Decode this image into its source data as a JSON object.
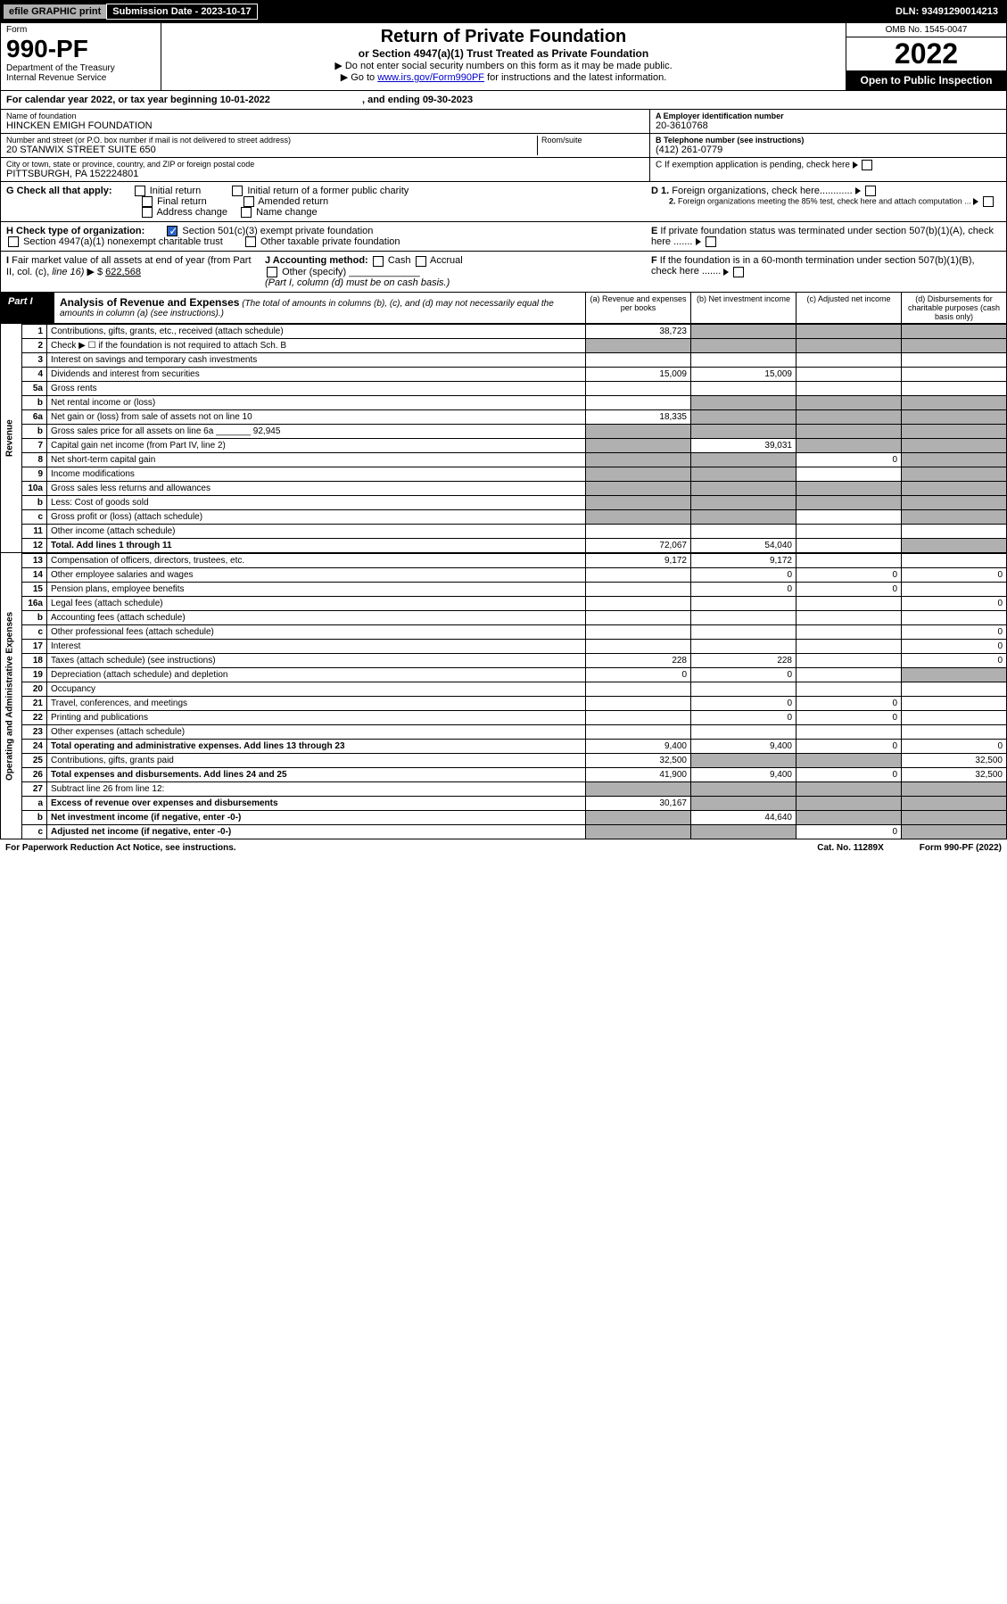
{
  "top": {
    "efile": "efile GRAPHIC print",
    "sub": "Submission Date - 2023-10-17",
    "dln": "DLN: 93491290014213"
  },
  "hdr": {
    "form": "Form",
    "num": "990-PF",
    "dept": "Department of the Treasury",
    "irs": "Internal Revenue Service",
    "title": "Return of Private Foundation",
    "sub": "or Section 4947(a)(1) Trust Treated as Private Foundation",
    "note1": "▶ Do not enter social security numbers on this form as it may be made public.",
    "note2a": "▶ Go to ",
    "note2b": "www.irs.gov/Form990PF",
    "note2c": " for instructions and the latest information.",
    "omb": "OMB No. 1545-0047",
    "year": "2022",
    "open": "Open to Public Inspection"
  },
  "cal": {
    "a": "For calendar year 2022, or tax year beginning 10-01-2022",
    "b": ", and ending 09-30-2023"
  },
  "name": {
    "lbl": "Name of foundation",
    "val": "HINCKEN EMIGH FOUNDATION"
  },
  "addr": {
    "lbl": "Number and street (or P.O. box number if mail is not delivered to street address)",
    "val": "20 STANWIX STREET SUITE 650",
    "rm": "Room/suite"
  },
  "city": {
    "lbl": "City or town, state or province, country, and ZIP or foreign postal code",
    "val": "PITTSBURGH, PA  152224801"
  },
  "emp": {
    "lbl": "A Employer identification number",
    "val": "20-3610768"
  },
  "tel": {
    "lbl": "B Telephone number (see instructions)",
    "val": "(412) 261-0779"
  },
  "cex": "C If exemption application is pending, check here",
  "d1": "D 1. Foreign organizations, check here............",
  "d2": "2. Foreign organizations meeting the 85% test, check here and attach computation ...",
  "eex": "E If private foundation status was terminated under section 507(b)(1)(A), check here .......",
  "fex": "F If the foundation is in a 60-month termination under section 507(b)(1)(B), check here .......",
  "g": {
    "lbl": "G Check all that apply:",
    "o1": "Initial return",
    "o2": "Final return",
    "o3": "Address change",
    "o4": "Initial return of a former public charity",
    "o5": "Amended return",
    "o6": "Name change"
  },
  "h": {
    "lbl": "H Check type of organization:",
    "o1": "Section 501(c)(3) exempt private foundation",
    "o2": "Section 4947(a)(1) nonexempt charitable trust",
    "o3": "Other taxable private foundation"
  },
  "i": {
    "lbl": "I Fair market value of all assets at end of year (from Part II, col. (c), line 16) ▶ $",
    "val": "622,568"
  },
  "j": {
    "lbl": "J Accounting method:",
    "o1": "Cash",
    "o2": "Accrual",
    "o3": "Other (specify)",
    "note": "(Part I, column (d) must be on cash basis.)"
  },
  "part1": {
    "lbl": "Part I",
    "title": "Analysis of Revenue and Expenses",
    "sub": " (The total of amounts in columns (b), (c), and (d) may not necessarily equal the amounts in column (a) (see instructions).)",
    "ca": "(a)  Revenue and expenses per books",
    "cb": "(b)  Net investment income",
    "cc": "(c)  Adjusted net income",
    "cd": "(d)  Disbursements for charitable purposes (cash basis only)"
  },
  "side": {
    "rev": "Revenue",
    "exp": "Operating and Administrative Expenses"
  },
  "rows": [
    {
      "n": "1",
      "d": "Contributions, gifts, grants, etc., received (attach schedule)",
      "a": "38,723",
      "bsh": true,
      "csh": true,
      "dsh": true
    },
    {
      "n": "2",
      "d": "Check ▶ ☐ if the foundation is not required to attach Sch. B",
      "ash": true,
      "bsh": true,
      "csh": true,
      "dsh": true,
      "allsh": true
    },
    {
      "n": "3",
      "d": "Interest on savings and temporary cash investments"
    },
    {
      "n": "4",
      "d": "Dividends and interest from securities",
      "a": "15,009",
      "b": "15,009"
    },
    {
      "n": "5a",
      "d": "Gross rents"
    },
    {
      "n": "b",
      "d": "Net rental income or (loss)",
      "bsh": true,
      "csh": true,
      "dsh": true
    },
    {
      "n": "6a",
      "d": "Net gain or (loss) from sale of assets not on line 10",
      "a": "18,335",
      "bsh": true,
      "csh": true,
      "dsh": true
    },
    {
      "n": "b",
      "d": "Gross sales price for all assets on line 6a _______ 92,945",
      "ash": true,
      "bsh": true,
      "csh": true,
      "dsh": true,
      "allsh": true
    },
    {
      "n": "7",
      "d": "Capital gain net income (from Part IV, line 2)",
      "ash": true,
      "b": "39,031",
      "csh": true,
      "dsh": true
    },
    {
      "n": "8",
      "d": "Net short-term capital gain",
      "ash": true,
      "bsh": true,
      "c": "0",
      "dsh": true
    },
    {
      "n": "9",
      "d": "Income modifications",
      "ash": true,
      "bsh": true,
      "dsh": true
    },
    {
      "n": "10a",
      "d": "Gross sales less returns and allowances",
      "ash": true,
      "bsh": true,
      "csh": true,
      "dsh": true,
      "allsh": true
    },
    {
      "n": "b",
      "d": "Less: Cost of goods sold",
      "ash": true,
      "bsh": true,
      "csh": true,
      "dsh": true,
      "allsh": true
    },
    {
      "n": "c",
      "d": "Gross profit or (loss) (attach schedule)",
      "ash": true,
      "bsh": true,
      "dsh": true
    },
    {
      "n": "11",
      "d": "Other income (attach schedule)"
    },
    {
      "n": "12",
      "d": "Total. Add lines 1 through 11",
      "bold": true,
      "a": "72,067",
      "b": "54,040",
      "dsh": true
    }
  ],
  "erows": [
    {
      "n": "13",
      "d": "Compensation of officers, directors, trustees, etc.",
      "a": "9,172",
      "b": "9,172"
    },
    {
      "n": "14",
      "d": "Other employee salaries and wages",
      "b": "0",
      "c": "0",
      "dd": "0"
    },
    {
      "n": "15",
      "d": "Pension plans, employee benefits",
      "b": "0",
      "c": "0"
    },
    {
      "n": "16a",
      "d": "Legal fees (attach schedule)",
      "dd": "0"
    },
    {
      "n": "b",
      "d": "Accounting fees (attach schedule)"
    },
    {
      "n": "c",
      "d": "Other professional fees (attach schedule)",
      "dd": "0"
    },
    {
      "n": "17",
      "d": "Interest",
      "dd": "0"
    },
    {
      "n": "18",
      "d": "Taxes (attach schedule) (see instructions)",
      "a": "228",
      "b": "228",
      "dd": "0"
    },
    {
      "n": "19",
      "d": "Depreciation (attach schedule) and depletion",
      "a": "0",
      "b": "0",
      "dsh": true
    },
    {
      "n": "20",
      "d": "Occupancy"
    },
    {
      "n": "21",
      "d": "Travel, conferences, and meetings",
      "b": "0",
      "c": "0"
    },
    {
      "n": "22",
      "d": "Printing and publications",
      "b": "0",
      "c": "0"
    },
    {
      "n": "23",
      "d": "Other expenses (attach schedule)"
    },
    {
      "n": "24",
      "d": "Total operating and administrative expenses. Add lines 13 through 23",
      "bold": true,
      "a": "9,400",
      "b": "9,400",
      "c": "0",
      "dd": "0"
    },
    {
      "n": "25",
      "d": "Contributions, gifts, grants paid",
      "a": "32,500",
      "bsh": true,
      "csh": true,
      "dd": "32,500"
    },
    {
      "n": "26",
      "d": "Total expenses and disbursements. Add lines 24 and 25",
      "bold": true,
      "a": "41,900",
      "b": "9,400",
      "c": "0",
      "dd": "32,500"
    },
    {
      "n": "27",
      "d": "Subtract line 26 from line 12:",
      "ash": true,
      "bsh": true,
      "csh": true,
      "dsh": true,
      "allsh": true
    },
    {
      "n": "a",
      "d": "Excess of revenue over expenses and disbursements",
      "bold": true,
      "a": "30,167",
      "bsh": true,
      "csh": true,
      "dsh": true
    },
    {
      "n": "b",
      "d": "Net investment income (if negative, enter -0-)",
      "bold": true,
      "ash": true,
      "b": "44,640",
      "csh": true,
      "dsh": true
    },
    {
      "n": "c",
      "d": "Adjusted net income (if negative, enter -0-)",
      "bold": true,
      "ash": true,
      "bsh": true,
      "c": "0",
      "dsh": true
    }
  ],
  "ftr": {
    "a": "For Paperwork Reduction Act Notice, see instructions.",
    "b": "Cat. No. 11289X",
    "c": "Form 990-PF (2022)"
  }
}
